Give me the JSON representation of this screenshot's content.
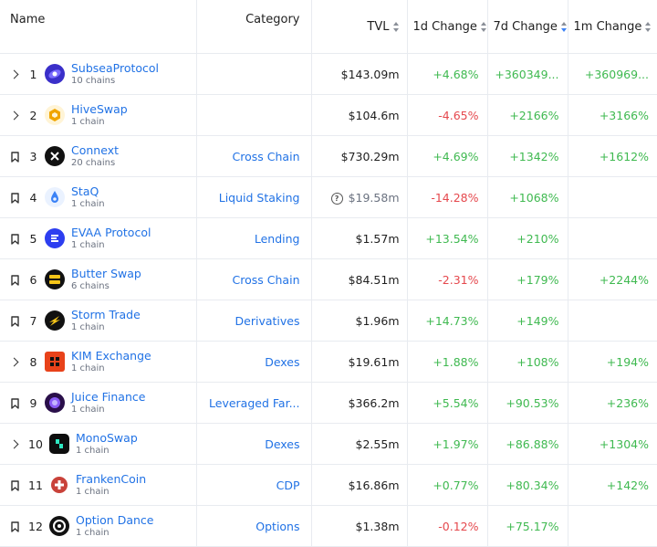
{
  "columns": {
    "name": "Name",
    "category": "Category",
    "tvl": "TVL",
    "change_1d": "1d Change",
    "change_7d": "7d Change",
    "change_1m": "1m Change"
  },
  "colors": {
    "link": "#2172e5",
    "positive": "#3fb950",
    "negative": "#e5484d",
    "sort_active": "#3b82f6"
  },
  "rows": [
    {
      "rank": "1",
      "lead_icon": "chevron-right-icon",
      "name": "SubseaProtocol",
      "chains": "10 chains",
      "category": "",
      "tvl": "$143.09m",
      "tvl_note": "",
      "c1d": "+4.68%",
      "c7d": "+360349...",
      "c1m": "+360969...",
      "logo_color": "#4c3bd6",
      "logo_icon": "subsea-logo-icon"
    },
    {
      "rank": "2",
      "lead_icon": "chevron-right-icon",
      "name": "HiveSwap",
      "chains": "1 chain",
      "category": "",
      "tvl": "$104.6m",
      "tvl_note": "",
      "c1d": "-4.65%",
      "c7d": "+2166%",
      "c1m": "+3166%",
      "logo_color": "#f0b429",
      "logo_icon": "hiveswap-logo-icon"
    },
    {
      "rank": "3",
      "lead_icon": "bookmark-icon",
      "name": "Connext",
      "chains": "20 chains",
      "category": "Cross Chain",
      "tvl": "$730.29m",
      "tvl_note": "",
      "c1d": "+4.69%",
      "c7d": "+1342%",
      "c1m": "+1612%",
      "logo_color": "#111111",
      "logo_icon": "connext-logo-icon"
    },
    {
      "rank": "4",
      "lead_icon": "bookmark-icon",
      "name": "StaQ",
      "chains": "1 chain",
      "category": "Liquid Staking",
      "tvl": "$19.58m",
      "tvl_note": "?",
      "c1d": "-14.28%",
      "c7d": "+1068%",
      "c1m": "",
      "logo_color": "#e8f1ff",
      "logo_icon": "staq-logo-icon"
    },
    {
      "rank": "5",
      "lead_icon": "bookmark-icon",
      "name": "EVAA Protocol",
      "chains": "1 chain",
      "category": "Lending",
      "tvl": "$1.57m",
      "tvl_note": "",
      "c1d": "+13.54%",
      "c7d": "+210%",
      "c1m": "",
      "logo_color": "#2d3ef0",
      "logo_icon": "evaa-logo-icon"
    },
    {
      "rank": "6",
      "lead_icon": "bookmark-icon",
      "name": "Butter Swap",
      "chains": "6 chains",
      "category": "Cross Chain",
      "tvl": "$84.51m",
      "tvl_note": "",
      "c1d": "-2.31%",
      "c7d": "+179%",
      "c1m": "+2244%",
      "logo_color": "#111111",
      "logo_icon": "butterswap-logo-icon"
    },
    {
      "rank": "7",
      "lead_icon": "bookmark-icon",
      "name": "Storm Trade",
      "chains": "1 chain",
      "category": "Derivatives",
      "tvl": "$1.96m",
      "tvl_note": "",
      "c1d": "+14.73%",
      "c7d": "+149%",
      "c1m": "",
      "logo_color": "#111111",
      "logo_icon": "stormtrade-logo-icon"
    },
    {
      "rank": "8",
      "lead_icon": "chevron-right-icon",
      "name": "KIM Exchange",
      "chains": "1 chain",
      "category": "Dexes",
      "tvl": "$19.61m",
      "tvl_note": "",
      "c1d": "+1.88%",
      "c7d": "+108%",
      "c1m": "+194%",
      "logo_color": "#e8421a",
      "logo_icon": "kim-logo-icon"
    },
    {
      "rank": "9",
      "lead_icon": "bookmark-icon",
      "name": "Juice Finance",
      "chains": "1 chain",
      "category": "Leveraged Far...",
      "tvl": "$366.2m",
      "tvl_note": "",
      "c1d": "+5.54%",
      "c7d": "+90.53%",
      "c1m": "+236%",
      "logo_color": "#2a0f4a",
      "logo_icon": "juice-logo-icon"
    },
    {
      "rank": "10",
      "lead_icon": "chevron-right-icon",
      "name": "MonoSwap",
      "chains": "1 chain",
      "category": "Dexes",
      "tvl": "$2.55m",
      "tvl_note": "",
      "c1d": "+1.97%",
      "c7d": "+86.88%",
      "c1m": "+1304%",
      "logo_color": "#0d0d0d",
      "logo_icon": "monoswap-logo-icon"
    },
    {
      "rank": "11",
      "lead_icon": "bookmark-icon",
      "name": "FrankenCoin",
      "chains": "1 chain",
      "category": "CDP",
      "tvl": "$16.86m",
      "tvl_note": "",
      "c1d": "+0.77%",
      "c7d": "+80.34%",
      "c1m": "+142%",
      "logo_color": "#c9423a",
      "logo_icon": "frankencoin-logo-icon"
    },
    {
      "rank": "12",
      "lead_icon": "bookmark-icon",
      "name": "Option Dance",
      "chains": "1 chain",
      "category": "Options",
      "tvl": "$1.38m",
      "tvl_note": "",
      "c1d": "-0.12%",
      "c7d": "+75.17%",
      "c1m": "",
      "logo_color": "#111111",
      "logo_icon": "optiondance-logo-icon"
    }
  ]
}
